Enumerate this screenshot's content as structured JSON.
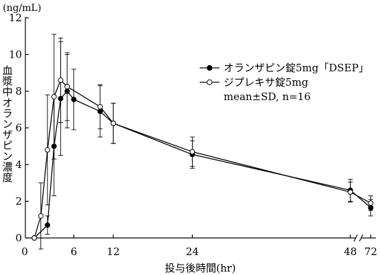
{
  "chart_data": {
    "type": "line",
    "title": "",
    "y_unit": "(ng/mL)",
    "ylabel": "血漿中オランザピン濃度",
    "xlabel": "投与後時間(hr)",
    "ylim": [
      0,
      12
    ],
    "y_ticks": [
      0,
      2,
      4,
      6,
      8,
      10,
      12
    ],
    "x_ticks": [
      {
        "value": 0,
        "label": "0"
      },
      {
        "value": 6,
        "label": "6"
      },
      {
        "value": 12,
        "label": "12"
      },
      {
        "value": 24,
        "label": "24"
      },
      {
        "value": 48,
        "label": "48"
      },
      {
        "value": 72,
        "label": "72"
      }
    ],
    "x_axis_break": {
      "after": 48,
      "before": 72
    },
    "legend_position": "top-right",
    "legend_note": "mean±SD, n=16",
    "series": [
      {
        "name": "オランザピン錠5mg「DSEP」",
        "marker": "filled-circle",
        "points": [
          {
            "x": 0,
            "y": 0,
            "sd": 0
          },
          {
            "x": 2,
            "y": 0.7,
            "sd": 0.5
          },
          {
            "x": 3,
            "y": 5.0,
            "sd": 2.7
          },
          {
            "x": 4,
            "y": 7.6,
            "sd": 3.1
          },
          {
            "x": 5,
            "y": 8.0,
            "sd": 2.0
          },
          {
            "x": 6,
            "y": 7.55,
            "sd": 1.65
          },
          {
            "x": 10,
            "y": 6.9,
            "sd": 1.4
          },
          {
            "x": 12,
            "y": 6.25,
            "sd": 1.1
          },
          {
            "x": 24,
            "y": 4.55,
            "sd": 0.75
          },
          {
            "x": 48,
            "y": 2.6,
            "sd": 0.6
          },
          {
            "x": 72,
            "y": 1.65,
            "sd": 0.45
          }
        ]
      },
      {
        "name": "ジプレキサ錠5mg",
        "marker": "open-circle",
        "points": [
          {
            "x": 0,
            "y": 0,
            "sd": 0
          },
          {
            "x": 1,
            "y": 1.2,
            "sd": 1.8
          },
          {
            "x": 2,
            "y": 4.8,
            "sd": 3.0
          },
          {
            "x": 3,
            "y": 7.7,
            "sd": 3.4
          },
          {
            "x": 4,
            "y": 8.6,
            "sd": 2.3
          },
          {
            "x": 5,
            "y": 8.25,
            "sd": 1.85
          },
          {
            "x": 10,
            "y": 7.15,
            "sd": 1.2
          },
          {
            "x": 12,
            "y": 6.25,
            "sd": 1.1
          },
          {
            "x": 24,
            "y": 4.7,
            "sd": 0.8
          },
          {
            "x": 48,
            "y": 2.5,
            "sd": 0.55
          },
          {
            "x": 72,
            "y": 1.9,
            "sd": 0.4
          }
        ]
      }
    ]
  }
}
